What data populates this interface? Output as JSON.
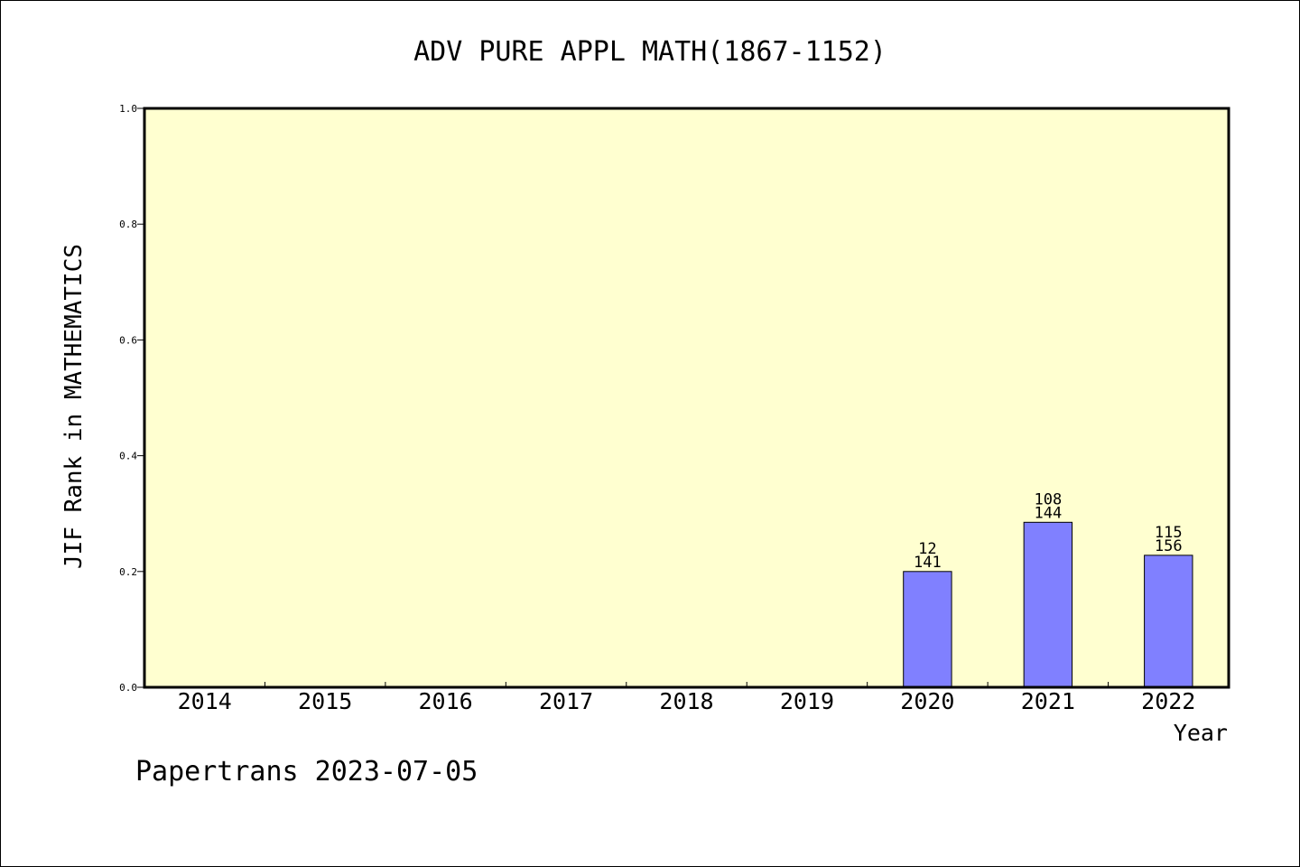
{
  "chart_data": {
    "type": "bar",
    "title": "ADV PURE APPL MATH(1867-1152)",
    "xlabel": "Year",
    "ylabel": "JIF Rank in MATHEMATICS",
    "ylim": [
      0,
      1.0
    ],
    "yticks": [
      "0.0",
      "0.2",
      "0.4",
      "0.6",
      "0.8",
      "1.0"
    ],
    "categories": [
      "2014",
      "2015",
      "2016",
      "2017",
      "2018",
      "2019",
      "2020",
      "2021",
      "2022"
    ],
    "values": [
      null,
      null,
      null,
      null,
      null,
      null,
      0.2,
      0.285,
      0.228
    ],
    "bar_labels": [
      null,
      null,
      null,
      null,
      null,
      null,
      {
        "rank": "12",
        "total": "141"
      },
      {
        "rank": "108",
        "total": "144"
      },
      {
        "rank": "115",
        "total": "156"
      }
    ],
    "grid": false,
    "colors": {
      "plot_background": "#ffffd0",
      "bar_fill": "#8080ff",
      "bar_stroke": "#000000"
    }
  },
  "footer": {
    "credit": "Papertrans 2023-07-05"
  }
}
